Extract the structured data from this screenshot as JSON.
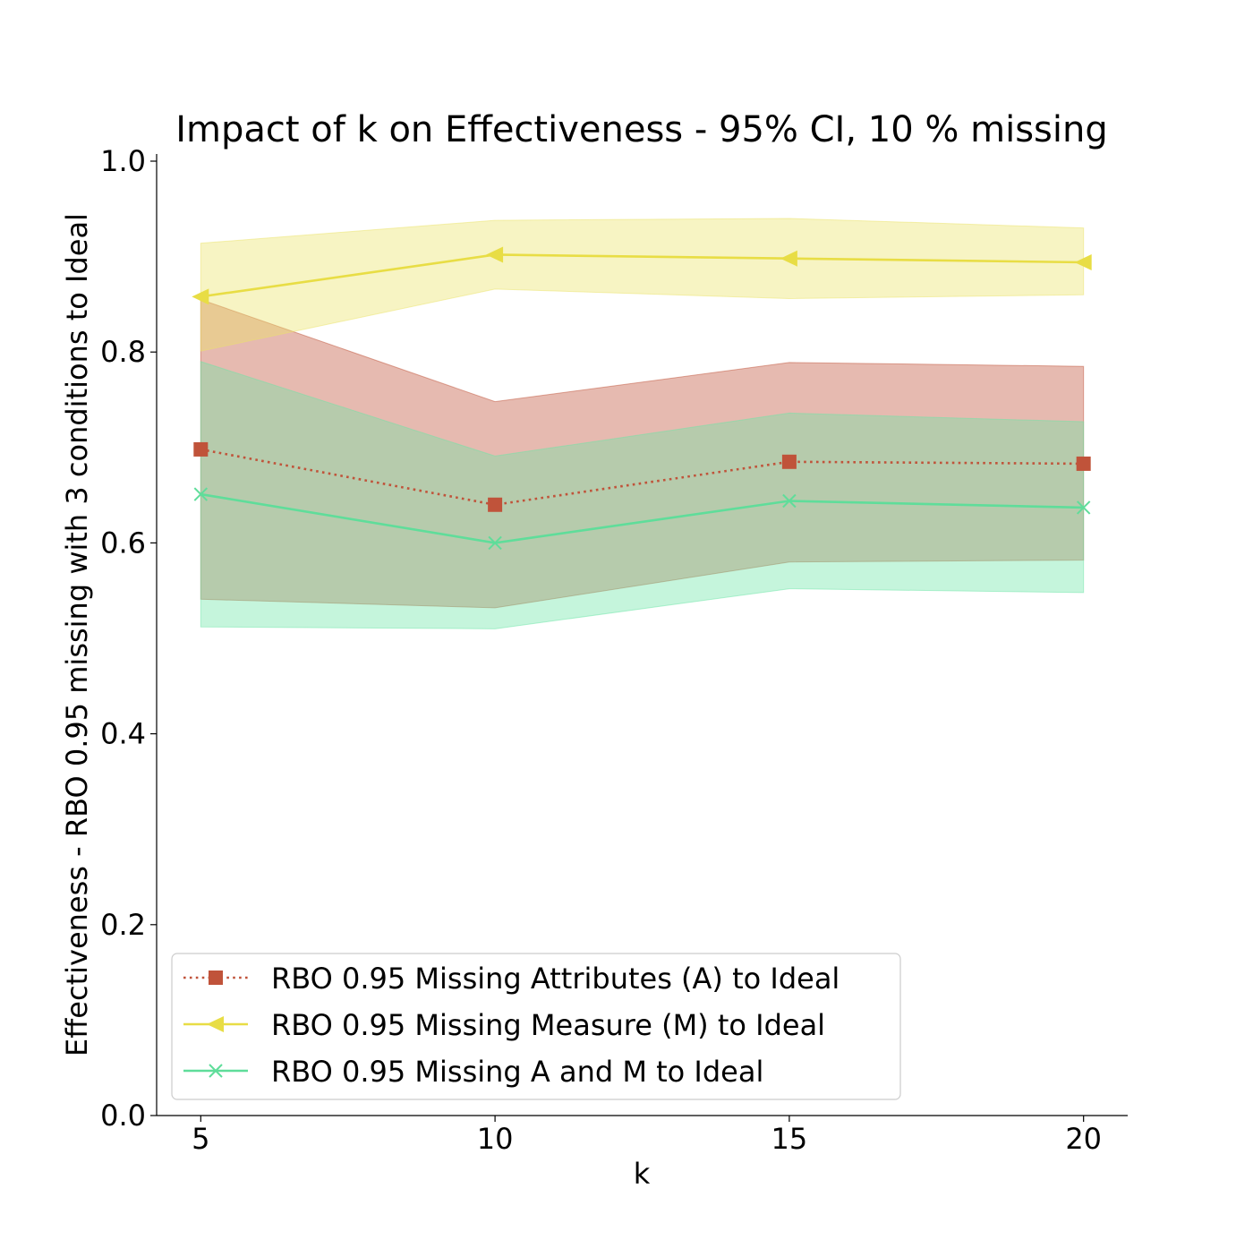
{
  "chart_data": {
    "type": "line",
    "title": "Impact of k on Effectiveness - 95% CI, 10 % missing",
    "xlabel": "k",
    "ylabel": "Effectiveness - RBO 0.95 missing with 3 conditions to Ideal",
    "x": [
      5,
      10,
      15,
      20
    ],
    "x_ticks": [
      5,
      10,
      15,
      20
    ],
    "x_tick_labels": [
      "5",
      "10",
      "15",
      "20"
    ],
    "xlim": [
      4.25,
      20.75
    ],
    "ylim": [
      0.0,
      1.0
    ],
    "y_ticks": [
      0.0,
      0.2,
      0.4,
      0.6,
      0.8,
      1.0
    ],
    "y_tick_labels": [
      "0.0",
      "0.2",
      "0.4",
      "0.6",
      "0.8",
      "1.0"
    ],
    "grid": false,
    "legend_position": "lower-left",
    "series": [
      {
        "name": "RBO 0.95 Missing Attributes (A) to Ideal",
        "values": [
          0.698,
          0.64,
          0.685,
          0.683
        ],
        "ci_lower": [
          0.541,
          0.532,
          0.58,
          0.582
        ],
        "ci_upper": [
          0.855,
          0.748,
          0.789,
          0.785
        ],
        "color": "#c0533a",
        "band_color": "#c0533a",
        "line_style": "dotted",
        "marker": "square"
      },
      {
        "name": "RBO 0.95 Missing Measure (M) to Ideal",
        "values": [
          0.858,
          0.902,
          0.898,
          0.894
        ],
        "ci_lower": [
          0.801,
          0.866,
          0.856,
          0.86
        ],
        "ci_upper": [
          0.914,
          0.938,
          0.94,
          0.93
        ],
        "color": "#e8dd45",
        "band_color": "#ece36a",
        "line_style": "solid",
        "marker": "triangle-left"
      },
      {
        "name": "RBO 0.95 Missing A and M to Ideal",
        "values": [
          0.651,
          0.6,
          0.644,
          0.637
        ],
        "ci_lower": [
          0.512,
          0.51,
          0.552,
          0.548
        ],
        "ci_upper": [
          0.79,
          0.691,
          0.736,
          0.727
        ],
        "color": "#5fdd9a",
        "band_color": "#6ee6a8",
        "line_style": "solid",
        "marker": "x"
      }
    ]
  }
}
